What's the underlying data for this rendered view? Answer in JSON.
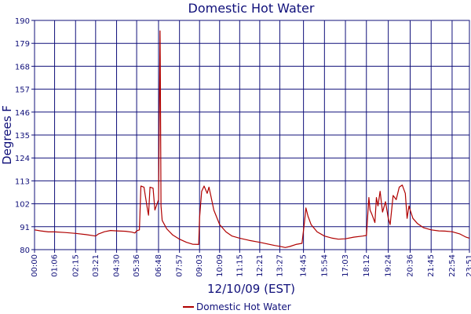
{
  "chart_data": {
    "type": "line",
    "title": "Domestic Hot Water",
    "xlabel": "12/10/09 (EST)",
    "ylabel": "Degrees F",
    "ylim": [
      80,
      190
    ],
    "yticks": [
      80,
      91,
      102,
      113,
      124,
      135,
      146,
      157,
      168,
      179,
      190
    ],
    "xlim": [
      "00:00",
      "23:51"
    ],
    "xticks": [
      "00:00",
      "01:06",
      "02:15",
      "03:21",
      "04:30",
      "05:36",
      "06:48",
      "07:57",
      "09:03",
      "10:09",
      "11:15",
      "12:21",
      "13:27",
      "14:45",
      "15:54",
      "17:03",
      "18:12",
      "19:24",
      "20:36",
      "21:45",
      "22:54",
      "23:51"
    ],
    "grid": true,
    "legend": "bottom",
    "series": [
      {
        "name": "Domestic Hot Water",
        "color": "#b00000",
        "points": [
          [
            "00:00",
            89.5
          ],
          [
            "00:20",
            89.0
          ],
          [
            "00:45",
            88.5
          ],
          [
            "01:06",
            88.5
          ],
          [
            "01:40",
            88.2
          ],
          [
            "02:15",
            87.8
          ],
          [
            "02:50",
            87.2
          ],
          [
            "03:21",
            86.5
          ],
          [
            "03:30",
            87.5
          ],
          [
            "03:50",
            88.6
          ],
          [
            "04:10",
            89.2
          ],
          [
            "04:30",
            89.0
          ],
          [
            "05:00",
            88.8
          ],
          [
            "05:20",
            88.4
          ],
          [
            "05:30",
            88.0
          ],
          [
            "05:36",
            89.0
          ],
          [
            "05:45",
            89.5
          ],
          [
            "05:50",
            110.5
          ],
          [
            "06:00",
            110.0
          ],
          [
            "06:12",
            99.0
          ],
          [
            "06:15",
            96.5
          ],
          [
            "06:20",
            110.0
          ],
          [
            "06:30",
            109.5
          ],
          [
            "06:36",
            99.0
          ],
          [
            "06:48",
            104.0
          ],
          [
            "06:53",
            185.0
          ],
          [
            "06:54",
            162.0
          ],
          [
            "06:56",
            101.0
          ],
          [
            "07:00",
            94.0
          ],
          [
            "07:15",
            90.0
          ],
          [
            "07:35",
            87.0
          ],
          [
            "07:57",
            85.0
          ],
          [
            "08:20",
            83.5
          ],
          [
            "08:40",
            82.6
          ],
          [
            "09:00",
            82.5
          ],
          [
            "09:03",
            95.0
          ],
          [
            "09:05",
            99.0
          ],
          [
            "09:10",
            108.0
          ],
          [
            "09:18",
            110.5
          ],
          [
            "09:28",
            107.0
          ],
          [
            "09:34",
            110.0
          ],
          [
            "09:40",
            106.0
          ],
          [
            "09:50",
            99.0
          ],
          [
            "10:09",
            92.0
          ],
          [
            "10:30",
            88.5
          ],
          [
            "10:50",
            86.5
          ],
          [
            "11:15",
            85.5
          ],
          [
            "11:45",
            84.5
          ],
          [
            "12:21",
            83.5
          ],
          [
            "12:50",
            82.6
          ],
          [
            "13:10",
            82.0
          ],
          [
            "13:27",
            81.6
          ],
          [
            "13:45",
            81.0
          ],
          [
            "14:00",
            81.5
          ],
          [
            "14:20",
            82.5
          ],
          [
            "14:40",
            83.0
          ],
          [
            "14:48",
            93.0
          ],
          [
            "14:53",
            100.0
          ],
          [
            "15:00",
            96.0
          ],
          [
            "15:10",
            92.0
          ],
          [
            "15:30",
            88.5
          ],
          [
            "15:54",
            86.5
          ],
          [
            "16:20",
            85.5
          ],
          [
            "16:40",
            85.0
          ],
          [
            "17:03",
            85.2
          ],
          [
            "17:30",
            86.0
          ],
          [
            "18:00",
            86.5
          ],
          [
            "18:12",
            86.8
          ],
          [
            "18:20",
            105.0
          ],
          [
            "18:24",
            99.0
          ],
          [
            "18:30",
            97.0
          ],
          [
            "18:40",
            93.0
          ],
          [
            "18:45",
            105.0
          ],
          [
            "18:50",
            101.0
          ],
          [
            "18:57",
            108.0
          ],
          [
            "19:05",
            98.0
          ],
          [
            "19:15",
            103.0
          ],
          [
            "19:24",
            95.0
          ],
          [
            "19:30",
            92.0
          ],
          [
            "19:40",
            106.0
          ],
          [
            "19:50",
            104.0
          ],
          [
            "20:00",
            110.0
          ],
          [
            "20:10",
            111.0
          ],
          [
            "20:20",
            107.0
          ],
          [
            "20:26",
            95.0
          ],
          [
            "20:32",
            101.0
          ],
          [
            "20:36",
            99.0
          ],
          [
            "20:45",
            95.0
          ],
          [
            "21:00",
            92.5
          ],
          [
            "21:20",
            90.5
          ],
          [
            "21:45",
            89.5
          ],
          [
            "22:10",
            89.0
          ],
          [
            "22:30",
            88.9
          ],
          [
            "22:54",
            88.6
          ],
          [
            "23:20",
            87.5
          ],
          [
            "23:40",
            86.0
          ],
          [
            "23:51",
            85.5
          ]
        ]
      }
    ]
  }
}
